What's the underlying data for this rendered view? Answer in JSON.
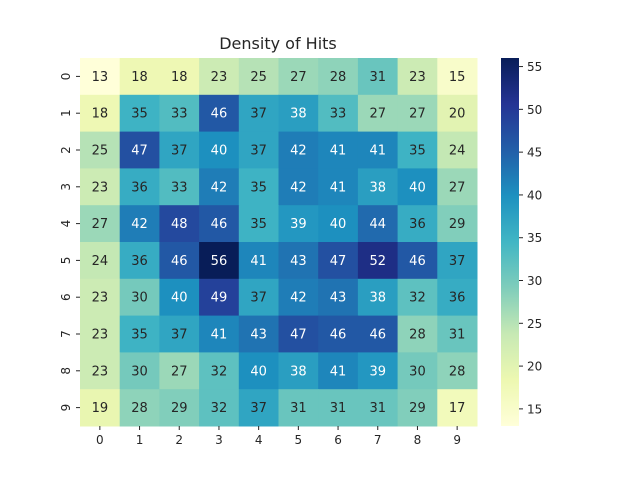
{
  "chart_data": {
    "type": "heatmap",
    "title": "Density of Hits",
    "xlabel": "",
    "ylabel": "",
    "x_categories": [
      "0",
      "1",
      "2",
      "3",
      "4",
      "5",
      "6",
      "7",
      "8",
      "9"
    ],
    "y_categories": [
      "0",
      "1",
      "2",
      "3",
      "4",
      "5",
      "6",
      "7",
      "8",
      "9"
    ],
    "values": [
      [
        13,
        18,
        18,
        23,
        25,
        27,
        28,
        31,
        23,
        15
      ],
      [
        18,
        35,
        33,
        46,
        37,
        38,
        33,
        27,
        27,
        20
      ],
      [
        25,
        47,
        37,
        40,
        37,
        42,
        41,
        41,
        35,
        24
      ],
      [
        23,
        36,
        33,
        42,
        35,
        42,
        41,
        38,
        40,
        27
      ],
      [
        27,
        42,
        48,
        46,
        35,
        39,
        40,
        44,
        36,
        29
      ],
      [
        24,
        36,
        46,
        56,
        41,
        43,
        47,
        52,
        46,
        37
      ],
      [
        23,
        30,
        40,
        49,
        37,
        42,
        43,
        38,
        32,
        36
      ],
      [
        23,
        35,
        37,
        41,
        43,
        47,
        46,
        46,
        28,
        31
      ],
      [
        23,
        30,
        27,
        32,
        40,
        38,
        41,
        39,
        30,
        28
      ],
      [
        19,
        28,
        29,
        32,
        37,
        31,
        31,
        31,
        29,
        17
      ]
    ],
    "colormap": "YlGnBu",
    "vmin": 13,
    "vmax": 56,
    "colorbar_ticks": [
      15,
      20,
      25,
      30,
      35,
      40,
      45,
      50,
      55
    ],
    "annotated": true,
    "grid": false
  }
}
